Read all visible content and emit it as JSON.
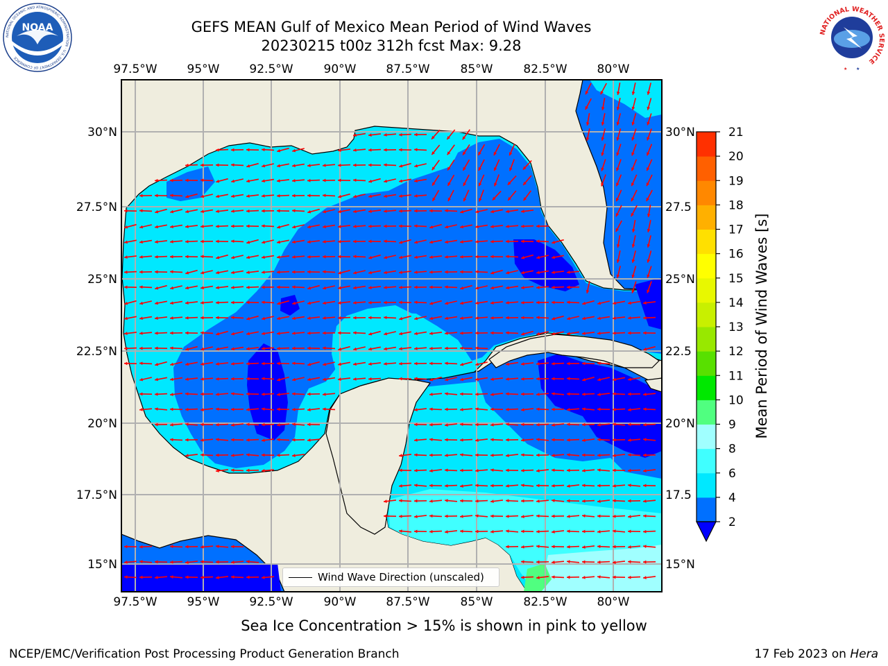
{
  "title": {
    "line1": "GEFS MEAN Gulf of Mexico Mean Period of Wind Waves",
    "line2": "20230215 t00z 312h fcst   Max: 9.28"
  },
  "map": {
    "longitude_ticks": [
      "97.5°W",
      "95°W",
      "92.5°W",
      "90°W",
      "87.5°W",
      "85°W",
      "82.5°W",
      "80°W"
    ],
    "latitude_ticks_left": [
      "30°N",
      "27.5°N",
      "25°N",
      "22.5°N",
      "20°N",
      "17.5°N",
      "15°N"
    ],
    "latitude_ticks_right": [
      "30°N",
      "27.5",
      "25°N",
      "22.5",
      "20°N",
      "17.5",
      "15°N"
    ],
    "land_color": "#efedde",
    "legend_label": "Wind Wave Direction (unscaled)",
    "arrow_color": "#ff0000"
  },
  "colorbar": {
    "label": "Mean Period of Wind Waves [s]",
    "ticks": [
      "2",
      "4",
      "6",
      "8",
      "9",
      "10",
      "11",
      "12",
      "13",
      "14",
      "15",
      "16",
      "17",
      "18",
      "19",
      "20",
      "21"
    ],
    "colors": [
      "#0070ff",
      "#00e8ff",
      "#40ffff",
      "#a0ffff",
      "#50ff80",
      "#00e800",
      "#58e000",
      "#98e800",
      "#c8f000",
      "#e8f800",
      "#ffff00",
      "#ffe000",
      "#ffb000",
      "#ff8800",
      "#ff6000",
      "#ff3000",
      "#ff0000"
    ],
    "under_color": "#0000ff"
  },
  "caption": "Sea Ice Concentration > 15% is shown in pink to yellow",
  "footer": {
    "left": "NCEP/EMC/Verification Post Processing Product Generation Branch",
    "date": "17 Feb 2023 on ",
    "host": "Hera"
  },
  "logos": {
    "noaa_text": "NOAA",
    "noaa_ring": "NATIONAL OCEANIC AND ATMOSPHERIC ADMINISTRATION · U.S. DEPARTMENT OF COMMERCE",
    "nws_ring": "NATIONAL WEATHER SERVICE"
  }
}
